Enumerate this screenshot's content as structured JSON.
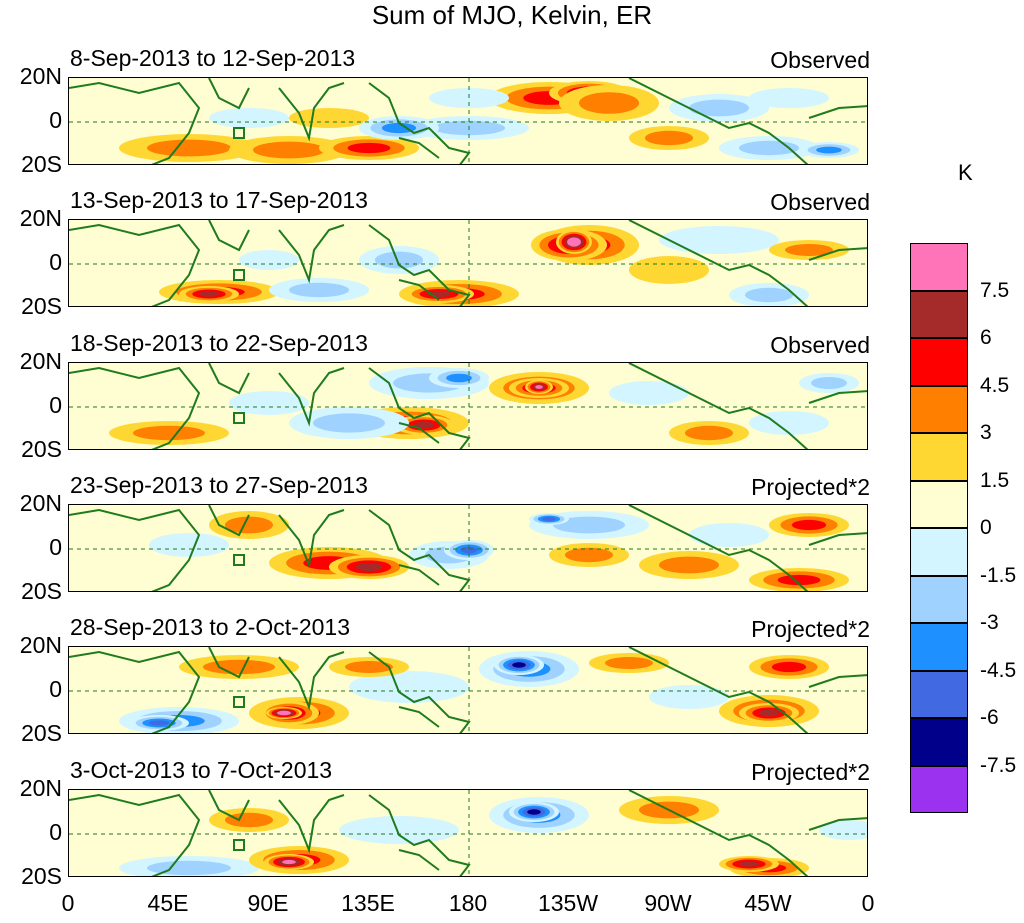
{
  "title": "Sum of MJO, Kelvin, ER",
  "panels": [
    {
      "date": "8-Sep-2013 to 12-Sep-2013",
      "tag": "Observed"
    },
    {
      "date": "13-Sep-2013 to 17-Sep-2013",
      "tag": "Observed"
    },
    {
      "date": "18-Sep-2013 to 22-Sep-2013",
      "tag": "Observed"
    },
    {
      "date": "23-Sep-2013 to 27-Sep-2013",
      "tag": "Projected*2"
    },
    {
      "date": "28-Sep-2013 to 2-Oct-2013",
      "tag": "Projected*2"
    },
    {
      "date": "3-Oct-2013 to 7-Oct-2013",
      "tag": "Projected*2"
    }
  ],
  "lat_labels": [
    "20N",
    "0",
    "20S"
  ],
  "lon_labels": [
    "0",
    "45E",
    "90E",
    "135E",
    "180",
    "135W",
    "90W",
    "45W",
    "0"
  ],
  "colorbar": {
    "unit": "K",
    "levels": [
      "7.5",
      "6",
      "4.5",
      "3",
      "1.5",
      "0",
      "-1.5",
      "-3",
      "-4.5",
      "-6",
      "-7.5"
    ],
    "colors": [
      "#ff73b9",
      "#a52a2a",
      "#ff0000",
      "#ff7f00",
      "#ffd732",
      "#fffdd2",
      "#d2f5ff",
      "#a0d2ff",
      "#1e90ff",
      "#4169e1",
      "#00008b",
      "#9a32f0"
    ]
  }
}
